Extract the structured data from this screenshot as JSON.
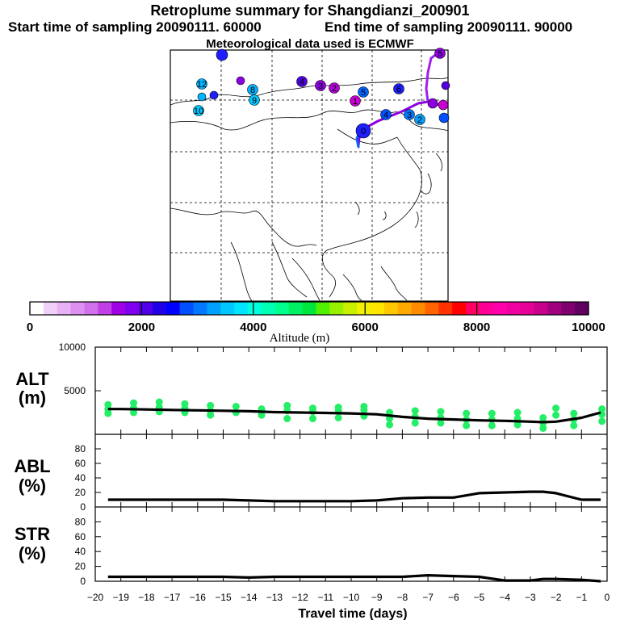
{
  "header": {
    "title": "Retroplume summary for Shangdianzi_200901",
    "start": "Start time of sampling 20090111. 60000",
    "end": "End time of sampling 20090111. 90000",
    "met": "Meteorological data used is ECMWF"
  },
  "map": {
    "markers": [
      {
        "label": "12",
        "color": "#00b4ff"
      },
      {
        "label": "10",
        "color": "#00c8ff"
      },
      {
        "label": "8",
        "color": "#00b4ff"
      },
      {
        "label": "9",
        "color": "#00c8ff"
      },
      {
        "label": "4",
        "color": "#5000e0"
      },
      {
        "label": "3",
        "color": "#8c00e0"
      },
      {
        "label": "2",
        "color": "#b400dc"
      },
      {
        "label": "1",
        "color": "#c800d2"
      },
      {
        "label": "5",
        "color": "#0064ff"
      },
      {
        "label": "6",
        "color": "#1e1eff"
      },
      {
        "label": "4",
        "color": "#0050ff"
      },
      {
        "label": "3",
        "color": "#0078ff"
      },
      {
        "label": "2",
        "color": "#00a0ff"
      },
      {
        "label": "0",
        "color": "#1e1eff"
      },
      {
        "label": "5",
        "color": "#8c00e0"
      }
    ]
  },
  "colorbar": {
    "label": "Altitude (m)",
    "ticks": [
      "0",
      "2000",
      "4000",
      "6000",
      "8000",
      "10000"
    ],
    "colors": [
      "#ffffff",
      "#f0d0f8",
      "#e8b0f5",
      "#dd90f0",
      "#d070ea",
      "#c040e6",
      "#a000e6",
      "#8000f0",
      "#5000e6",
      "#2000e6",
      "#0000ff",
      "#0050ff",
      "#0078ff",
      "#00a0ff",
      "#00c8ff",
      "#00e6ff",
      "#00ffdc",
      "#00ffb4",
      "#00ff8c",
      "#00f064",
      "#00e63c",
      "#50f000",
      "#96f000",
      "#c8f000",
      "#f0f000",
      "#ffe600",
      "#ffc800",
      "#ffaa00",
      "#ff8c00",
      "#ff6400",
      "#ff3200",
      "#ff0000",
      "#ff0064",
      "#ff0096",
      "#ff00aa",
      "#f000a0",
      "#e60096",
      "#c8008c",
      "#a00080",
      "#800070",
      "#600060"
    ]
  },
  "panels": {
    "alt_label": [
      "ALT",
      "(m)"
    ],
    "abl_label": [
      "ABL",
      "(%)"
    ],
    "str_label": [
      "STR",
      "(%)"
    ],
    "xlabel": "Travel time (days)",
    "xticks": [
      "-20",
      "-19",
      "-18",
      "-17",
      "-16",
      "-15",
      "-14",
      "-13",
      "-12",
      "-11",
      "-10",
      "-9",
      "-8",
      "-7",
      "-6",
      "-5",
      "-4",
      "-3",
      "-2",
      "-1",
      "0"
    ]
  },
  "chart_data": [
    {
      "type": "line",
      "title": "ALT (m)",
      "xlabel": "Travel time (days)",
      "ylabel": "ALT (m)",
      "xlim": [
        -20,
        0
      ],
      "ylim": [
        0,
        10000
      ],
      "yticks": [
        "10000",
        "5000"
      ],
      "ytick_values": [
        10000,
        5000
      ],
      "x": [
        -19.5,
        -19,
        -18,
        -17,
        -16,
        -15,
        -14,
        -13,
        -12,
        -11,
        -10,
        -9,
        -8,
        -7,
        -6,
        -5,
        -4,
        -3,
        -2.5,
        -2,
        -1,
        -0.25
      ],
      "values": [
        2900,
        2900,
        2850,
        2800,
        2750,
        2700,
        2650,
        2550,
        2500,
        2450,
        2400,
        2300,
        2000,
        1800,
        1700,
        1600,
        1550,
        1450,
        1400,
        1450,
        1900,
        2500
      ],
      "scatter": [
        {
          "x": -19.5,
          "y": 2400
        },
        {
          "x": -19.5,
          "y": 2900
        },
        {
          "x": -19.5,
          "y": 3400
        },
        {
          "x": -18.5,
          "y": 2500
        },
        {
          "x": -18.5,
          "y": 3000
        },
        {
          "x": -18.5,
          "y": 3600
        },
        {
          "x": -17.5,
          "y": 2600
        },
        {
          "x": -17.5,
          "y": 3100
        },
        {
          "x": -17.5,
          "y": 3700
        },
        {
          "x": -16.5,
          "y": 2500
        },
        {
          "x": -16.5,
          "y": 3000
        },
        {
          "x": -16.5,
          "y": 3500
        },
        {
          "x": -15.5,
          "y": 2200
        },
        {
          "x": -15.5,
          "y": 2700
        },
        {
          "x": -15.5,
          "y": 3300
        },
        {
          "x": -14.5,
          "y": 2500
        },
        {
          "x": -14.5,
          "y": 3200
        },
        {
          "x": -13.5,
          "y": 2200
        },
        {
          "x": -13.5,
          "y": 2900
        },
        {
          "x": -12.5,
          "y": 1800
        },
        {
          "x": -12.5,
          "y": 2700
        },
        {
          "x": -12.5,
          "y": 3300
        },
        {
          "x": -11.5,
          "y": 1800
        },
        {
          "x": -11.5,
          "y": 2600
        },
        {
          "x": -11.5,
          "y": 3000
        },
        {
          "x": -10.5,
          "y": 1900
        },
        {
          "x": -10.5,
          "y": 2700
        },
        {
          "x": -10.5,
          "y": 3100
        },
        {
          "x": -9.5,
          "y": 2100
        },
        {
          "x": -9.5,
          "y": 2800
        },
        {
          "x": -9.5,
          "y": 3200
        },
        {
          "x": -8.5,
          "y": 1100
        },
        {
          "x": -8.5,
          "y": 1800
        },
        {
          "x": -8.5,
          "y": 2500
        },
        {
          "x": -7.5,
          "y": 1300
        },
        {
          "x": -7.5,
          "y": 2000
        },
        {
          "x": -7.5,
          "y": 2700
        },
        {
          "x": -6.5,
          "y": 1300
        },
        {
          "x": -6.5,
          "y": 1900
        },
        {
          "x": -6.5,
          "y": 2600
        },
        {
          "x": -5.5,
          "y": 1000
        },
        {
          "x": -5.5,
          "y": 1700
        },
        {
          "x": -5.5,
          "y": 2400
        },
        {
          "x": -4.5,
          "y": 1000
        },
        {
          "x": -4.5,
          "y": 1700
        },
        {
          "x": -4.5,
          "y": 2400
        },
        {
          "x": -3.5,
          "y": 1100
        },
        {
          "x": -3.5,
          "y": 1800
        },
        {
          "x": -3.5,
          "y": 2500
        },
        {
          "x": -2.5,
          "y": 700
        },
        {
          "x": -2.5,
          "y": 1300
        },
        {
          "x": -2.5,
          "y": 1900
        },
        {
          "x": -2,
          "y": 2200
        },
        {
          "x": -2,
          "y": 3000
        },
        {
          "x": -1.3,
          "y": 1000
        },
        {
          "x": -1.3,
          "y": 1700
        },
        {
          "x": -1.3,
          "y": 2400
        },
        {
          "x": -0.2,
          "y": 1500
        },
        {
          "x": -0.2,
          "y": 2300
        },
        {
          "x": -0.2,
          "y": 2900
        }
      ],
      "scatter_color": "#22ee66"
    },
    {
      "type": "line",
      "title": "ABL (%)",
      "ylabel": "ABL (%)",
      "xlim": [
        -20,
        0
      ],
      "ylim": [
        0,
        100
      ],
      "yticks": [
        "80",
        "60",
        "40",
        "20",
        "0"
      ],
      "ytick_values": [
        80,
        60,
        40,
        20,
        0
      ],
      "x": [
        -19.5,
        -19,
        -18,
        -17,
        -16,
        -15,
        -14,
        -13,
        -12,
        -11,
        -10,
        -9,
        -8,
        -7,
        -6,
        -5,
        -4,
        -3,
        -2.5,
        -2,
        -1,
        -0.25
      ],
      "values": [
        10,
        10,
        10,
        10,
        10,
        10,
        9,
        8,
        8,
        8,
        8,
        9,
        12,
        13,
        13,
        19,
        20,
        21,
        21,
        19,
        10,
        10
      ]
    },
    {
      "type": "line",
      "title": "STR (%)",
      "ylabel": "STR (%)",
      "xlim": [
        -20,
        0
      ],
      "ylim": [
        0,
        100
      ],
      "yticks": [
        "80",
        "60",
        "40",
        "20",
        "0"
      ],
      "ytick_values": [
        80,
        60,
        40,
        20,
        0
      ],
      "x": [
        -19.5,
        -19,
        -18,
        -17,
        -16,
        -15,
        -14,
        -13,
        -12,
        -11,
        -10,
        -9,
        -8,
        -7,
        -6,
        -5,
        -4,
        -3,
        -2.5,
        -2,
        -1,
        -0.25
      ],
      "values": [
        6,
        6,
        6,
        6,
        6,
        6,
        5,
        6,
        6,
        6,
        6,
        6,
        6,
        8,
        7,
        6,
        1,
        1,
        3,
        3,
        2,
        0
      ]
    }
  ]
}
